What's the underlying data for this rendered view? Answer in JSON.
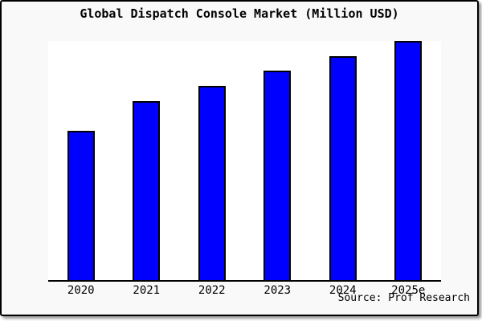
{
  "chart_data": {
    "type": "bar",
    "title": "Global Dispatch Console Market (Million USD)",
    "categories": [
      "2020",
      "2021",
      "2022",
      "2023",
      "2024",
      "2025e"
    ],
    "values": [
      100,
      120,
      130,
      140,
      150,
      160
    ],
    "values_note": "y-axis has no tick labels; values are relative estimates from bar heights (2020 = 100)",
    "xlabel": "",
    "ylabel": "",
    "ylim": [
      0,
      160
    ],
    "grid": false,
    "legend": false,
    "y_axis_visible": false,
    "source": "Source: Prof Research",
    "colors": {
      "bar_fill": "#0000FF",
      "bar_border": "#000000",
      "plot_background": "#ffffff",
      "frame_background": "#f9f9f9",
      "frame_border": "#000000",
      "text": "#000000"
    }
  }
}
